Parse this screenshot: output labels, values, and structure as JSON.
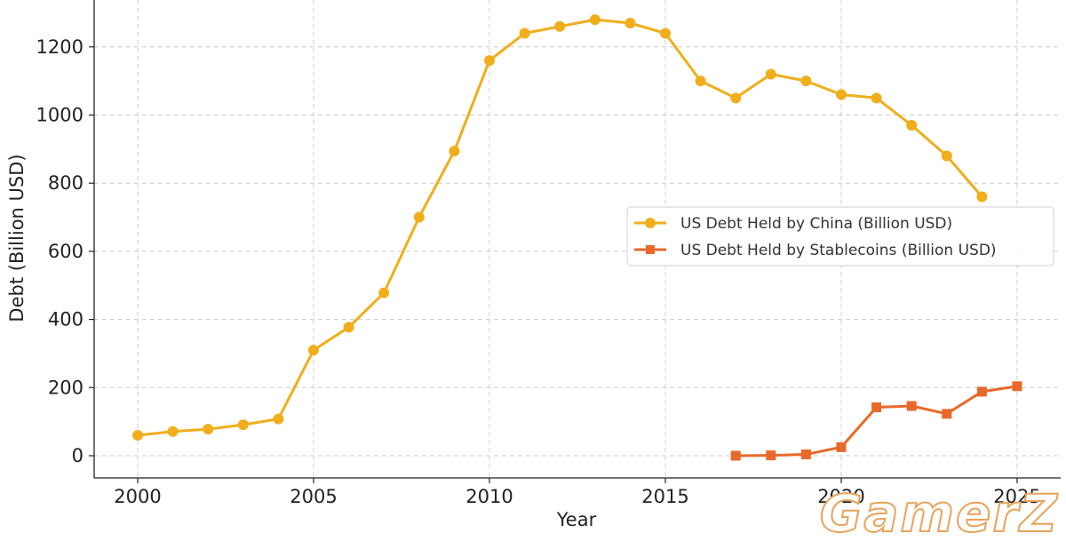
{
  "chart_data": {
    "type": "line",
    "title": "",
    "xlabel": "Year",
    "ylabel": "Debt (Billion USD)",
    "xlim": [
      1999,
      2026
    ],
    "ylim": [
      -60,
      1300
    ],
    "xticks": [
      2000,
      2005,
      2010,
      2015,
      2020,
      2025
    ],
    "yticks": [
      0,
      200,
      400,
      600,
      800,
      1000,
      1200
    ],
    "grid": true,
    "legend_position": "center-right",
    "series": [
      {
        "name": "US Debt Held by China (Billion USD)",
        "color": "#f0ae1a",
        "marker": "circle",
        "x": [
          2000,
          2001,
          2002,
          2003,
          2004,
          2005,
          2006,
          2007,
          2008,
          2009,
          2010,
          2011,
          2012,
          2013,
          2014,
          2015,
          2016,
          2017,
          2018,
          2019,
          2020,
          2021,
          2022,
          2023,
          2024
        ],
        "values": [
          60,
          71,
          78,
          91,
          108,
          310,
          377,
          478,
          700,
          894,
          1160,
          1240,
          1260,
          1280,
          1270,
          1240,
          1100,
          1050,
          1120,
          1100,
          1060,
          1050,
          970,
          880,
          760
        ]
      },
      {
        "name": "US Debt Held by Stablecoins (Billion USD)",
        "color": "#e8692a",
        "marker": "square",
        "x": [
          2017,
          2018,
          2019,
          2020,
          2021,
          2022,
          2023,
          2024,
          2025
        ],
        "values": [
          0,
          1,
          4,
          25,
          142,
          146,
          123,
          188,
          204
        ]
      }
    ]
  },
  "watermark": {
    "text": "GamerZ"
  }
}
